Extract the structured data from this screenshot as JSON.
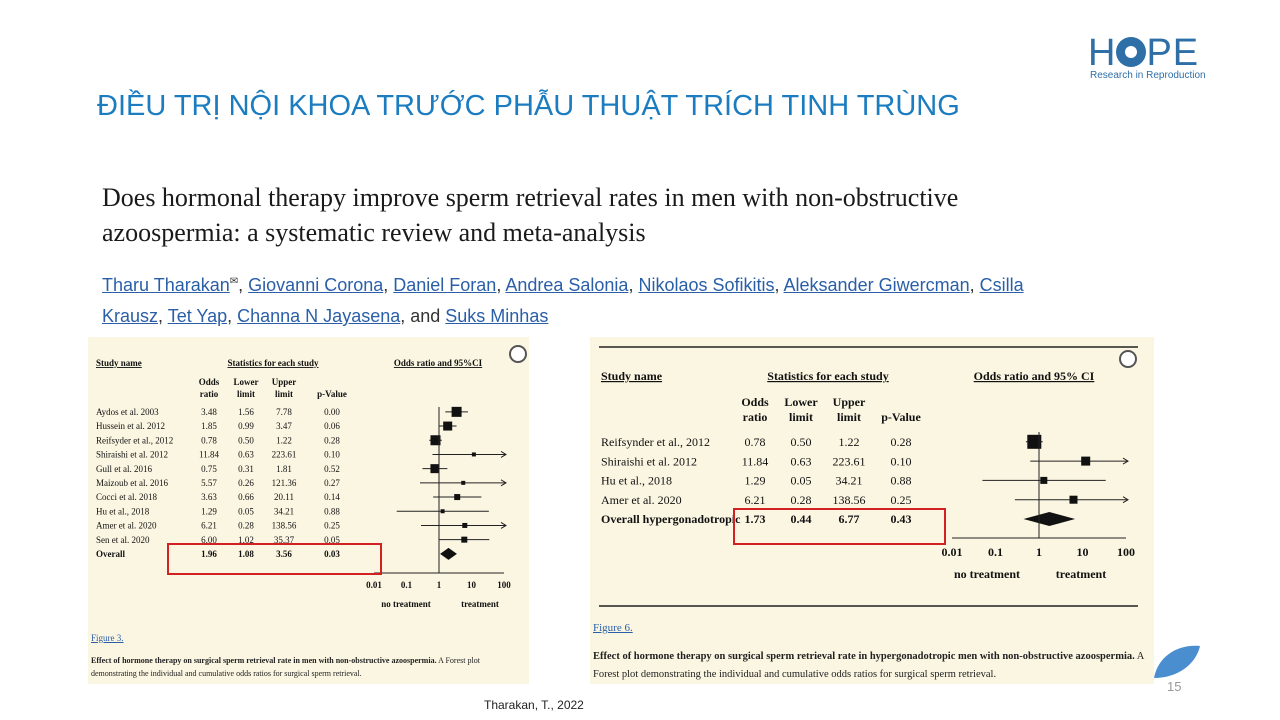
{
  "logo": {
    "word_pre": "H",
    "word_post": "PE",
    "subtitle": "Research in Reproduction",
    "icon": "eye-icon"
  },
  "slide_title": "ĐIỀU TRỊ NỘI KHOA TRƯỚC PHẪU THUẬT TRÍCH TINH TRÙNG",
  "paper": {
    "title": "Does hormonal therapy improve sperm retrieval rates in men with non-obstructive azoospermia: a systematic review and meta-analysis",
    "authors": [
      "Tharu Tharakan",
      "Giovanni Corona",
      "Daniel Foran",
      "Andrea Salonia",
      "Nikolaos Sofikitis",
      "Aleksander Giwercman",
      "Csilla Krausz",
      "Tet Yap",
      "Channa N Jayasena",
      "Suks Minhas"
    ],
    "authors_and": "and"
  },
  "chart_data": [
    {
      "type": "table",
      "headers": {
        "study": "Study name",
        "stats": "Statistics for each study",
        "plot": "Odds ratio and 95%CI"
      },
      "columns": [
        "Odds ratio",
        "Lower limit",
        "Upper limit",
        "p-Value"
      ],
      "rows": [
        {
          "name": "Aydos et al. 2003",
          "or": "3.48",
          "lower": "1.56",
          "upper": "7.78",
          "p": "0.00"
        },
        {
          "name": "Hussein et al. 2012",
          "or": "1.85",
          "lower": "0.99",
          "upper": "3.47",
          "p": "0.06"
        },
        {
          "name": "Reifsyder et al., 2012",
          "or": "0.78",
          "lower": "0.50",
          "upper": "1.22",
          "p": "0.28"
        },
        {
          "name": "Shiraishi et al. 2012",
          "or": "11.84",
          "lower": "0.63",
          "upper": "223.61",
          "p": "0.10"
        },
        {
          "name": "Gull et al. 2016",
          "or": "0.75",
          "lower": "0.31",
          "upper": "1.81",
          "p": "0.52"
        },
        {
          "name": "Maizoub et al. 2016",
          "or": "5.57",
          "lower": "0.26",
          "upper": "121.36",
          "p": "0.27"
        },
        {
          "name": "Cocci et al. 2018",
          "or": "3.63",
          "lower": "0.66",
          "upper": "20.11",
          "p": "0.14"
        },
        {
          "name": "Hu et al., 2018",
          "or": "1.29",
          "lower": "0.05",
          "upper": "34.21",
          "p": "0.88"
        },
        {
          "name": "Amer et al. 2020",
          "or": "6.21",
          "lower": "0.28",
          "upper": "138.56",
          "p": "0.25"
        },
        {
          "name": "Sen et al. 2020",
          "or": "6.00",
          "lower": "1.02",
          "upper": "35.37",
          "p": "0.05"
        }
      ],
      "overall": {
        "name": "Overall",
        "or": "1.96",
        "lower": "1.08",
        "upper": "3.56",
        "p": "0.03"
      },
      "xscale": "log",
      "xticks": [
        "0.01",
        "0.1",
        "1",
        "10",
        "100"
      ],
      "xlim": [
        0.01,
        100
      ],
      "xlabel_left": "no treatment",
      "xlabel_right": "treatment",
      "figure_label": "Figure 3.",
      "caption_bold": "Effect of hormone therapy on surgical sperm retrieval rate in men with non-obstructive azoospermia.",
      "caption_rest": "A Forest plot demonstrating the individual and cumulative odds ratios for surgical sperm retrieval.",
      "highlight_color": "#d32020"
    },
    {
      "type": "table",
      "headers": {
        "study": "Study name",
        "stats": "Statistics for each study",
        "plot": "Odds ratio and 95% CI"
      },
      "columns": [
        "Odds ratio",
        "Lower limit",
        "Upper limit",
        "p-Value"
      ],
      "rows": [
        {
          "name": "Reifsynder et al., 2012",
          "or": "0.78",
          "lower": "0.50",
          "upper": "1.22",
          "p": "0.28"
        },
        {
          "name": "Shiraishi et al. 2012",
          "or": "11.84",
          "lower": "0.63",
          "upper": "223.61",
          "p": "0.10"
        },
        {
          "name": "Hu et al., 2018",
          "or": "1.29",
          "lower": "0.05",
          "upper": "34.21",
          "p": "0.88"
        },
        {
          "name": "Amer et al. 2020",
          "or": "6.21",
          "lower": "0.28",
          "upper": "138.56",
          "p": "0.25"
        }
      ],
      "overall": {
        "name": "Overall hypergonadotropic",
        "or": "1.73",
        "lower": "0.44",
        "upper": "6.77",
        "p": "0.43"
      },
      "xscale": "log",
      "xticks": [
        "0.01",
        "0.1",
        "1",
        "10",
        "100"
      ],
      "xlim": [
        0.01,
        100
      ],
      "xlabel_left": "no treatment",
      "xlabel_right": "treatment",
      "figure_label": "Figure 6.",
      "caption_bold": "Effect of hormone therapy on surgical sperm retrieval rate in hypergonadotropic men with non-obstructive azoospermia.",
      "caption_rest": "A Forest plot demonstrating the individual and cumulative odds ratios for surgical sperm retrieval.",
      "highlight_color": "#d32020"
    }
  ],
  "footer": {
    "reference": "Tharakan, T., 2022",
    "page_number": "15"
  },
  "colors": {
    "title_blue": "#1b7cc0",
    "logo_blue": "#2e6fa7",
    "link_blue": "#2a5fa8",
    "panel_bg": "#fbf6e2"
  }
}
